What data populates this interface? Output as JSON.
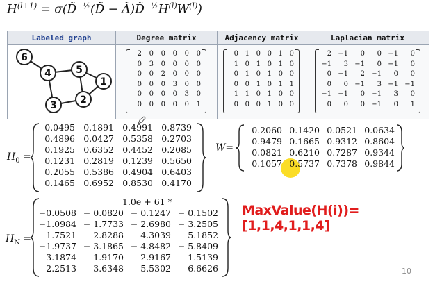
{
  "formula": {
    "lhs": "H",
    "lhs_sup": "(l+1)",
    "rhs": "= σ(D̃",
    "sup1": "−½",
    "mid": "(D̃ − Ã)D̃",
    "sup2": "−½",
    "h": "H",
    "h_sup": "(l)",
    "w": "W",
    "w_sup": "(l)",
    "end": ")"
  },
  "table": {
    "headers": [
      "Labeled graph",
      "Degree matrix",
      "Adjacency matrix",
      "Laplacian matrix"
    ],
    "graph": {
      "nodes": [
        "6",
        "4",
        "5",
        "1",
        "3",
        "2"
      ],
      "edges": [
        [
          "6",
          "4"
        ],
        [
          "4",
          "5"
        ],
        [
          "4",
          "3"
        ],
        [
          "5",
          "1"
        ],
        [
          "5",
          "2"
        ],
        [
          "1",
          "2"
        ],
        [
          "3",
          "2"
        ]
      ]
    },
    "degree": [
      [
        "2",
        "0",
        "0",
        "0",
        "0",
        "0"
      ],
      [
        "0",
        "3",
        "0",
        "0",
        "0",
        "0"
      ],
      [
        "0",
        "0",
        "2",
        "0",
        "0",
        "0"
      ],
      [
        "0",
        "0",
        "0",
        "3",
        "0",
        "0"
      ],
      [
        "0",
        "0",
        "0",
        "0",
        "3",
        "0"
      ],
      [
        "0",
        "0",
        "0",
        "0",
        "0",
        "1"
      ]
    ],
    "adjacency": [
      [
        "0",
        "1",
        "0",
        "0",
        "1",
        "0"
      ],
      [
        "1",
        "0",
        "1",
        "0",
        "1",
        "0"
      ],
      [
        "0",
        "1",
        "0",
        "1",
        "0",
        "0"
      ],
      [
        "0",
        "0",
        "1",
        "0",
        "1",
        "1"
      ],
      [
        "1",
        "1",
        "0",
        "1",
        "0",
        "0"
      ],
      [
        "0",
        "0",
        "0",
        "1",
        "0",
        "0"
      ]
    ],
    "laplacian": [
      [
        "2",
        "−1",
        "0",
        "0",
        "−1",
        "0"
      ],
      [
        "−1",
        "3",
        "−1",
        "0",
        "−1",
        "0"
      ],
      [
        "0",
        "−1",
        "2",
        "−1",
        "0",
        "0"
      ],
      [
        "0",
        "0",
        "−1",
        "3",
        "−1",
        "−1"
      ],
      [
        "−1",
        "−1",
        "0",
        "−1",
        "3",
        "0"
      ],
      [
        "0",
        "0",
        "0",
        "−1",
        "0",
        "1"
      ]
    ]
  },
  "h0": {
    "label": "H",
    "sub": "0",
    "eq": "=",
    "rows": [
      [
        "0.0495",
        "0.1891",
        "0.4991",
        "0.8739"
      ],
      [
        "0.4896",
        "0.0427",
        "0.5358",
        "0.2703"
      ],
      [
        "0.1925",
        "0.6352",
        "0.4452",
        "0.2085"
      ],
      [
        "0.1231",
        "0.2819",
        "0.1239",
        "0.5650"
      ],
      [
        "0.2055",
        "0.5386",
        "0.4904",
        "0.6403"
      ],
      [
        "0.1465",
        "0.6952",
        "0.8530",
        "0.4170"
      ]
    ]
  },
  "w": {
    "label": "W=",
    "rows": [
      [
        "0.2060",
        "0.1420",
        "0.0521",
        "0.0634"
      ],
      [
        "0.9479",
        "0.1665",
        "0.9312",
        "0.8604"
      ],
      [
        "0.0821",
        "0.6210",
        "0.7287",
        "0.9344"
      ],
      [
        "0.1057",
        "0.5737",
        "0.7378",
        "0.9844"
      ]
    ]
  },
  "hn": {
    "label": "H",
    "sub": "N",
    "eq": "=",
    "scale": "1.0e + 61 *",
    "rows": [
      [
        "−0.0508",
        "− 0.0820",
        "− 0.1247",
        "− 0.1502"
      ],
      [
        "−1.0984",
        "− 1.7733",
        "− 2.6980",
        "− 3.2505"
      ],
      [
        "1.7521",
        "2.8288",
        "4.3039",
        "5.1852"
      ],
      [
        "−1.9737",
        "− 3.1865",
        "− 4.8482",
        "− 5.8409"
      ],
      [
        "3.1874",
        "1.9170",
        "2.9167",
        "1.5139"
      ],
      [
        "2.2513",
        "3.6348",
        "5.5302",
        "6.6626"
      ]
    ]
  },
  "max_value_text": "MaxValue(H(i))=[1,1,4,1,1,4]",
  "page_number": "10",
  "colors": {
    "accent_red": "#e11d1d",
    "highlight": "#fad700",
    "header_bg": "#e6e9ee"
  },
  "icons": {
    "pen": "pen-cursor-icon"
  }
}
